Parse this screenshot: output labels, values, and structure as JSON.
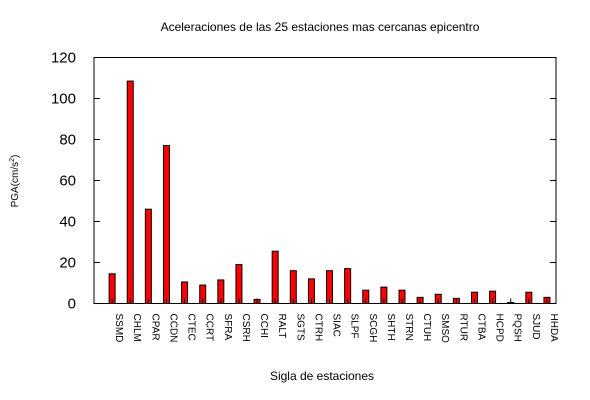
{
  "chart_data": {
    "type": "bar",
    "title": "Aceleraciones de las 25 estaciones mas cercanas epicentro",
    "xlabel": "Sigla de estaciones",
    "ylabel": "PGA(cm/s",
    "ylabel_superscript": "2",
    "ylabel_close": ")",
    "categories": [
      "SSMD",
      "CHLM",
      "CPAR",
      "CCDN",
      "CTEC",
      "CCRT",
      "SFRA",
      "CSRH",
      "CCHI",
      "RALT",
      "SGTS",
      "CTRH",
      "SIAC",
      "SLPF",
      "SCGH",
      "SHTH",
      "STRN",
      "CTUH",
      "SMSO",
      "RTUR",
      "CTBA",
      "HCPD",
      "PQSH",
      "SJUD",
      "HHDA"
    ],
    "values": [
      14.5,
      108.5,
      46,
      77,
      10.5,
      9,
      11.5,
      19,
      2,
      25.5,
      16,
      12,
      16,
      17,
      6.5,
      8,
      6.5,
      3,
      4.5,
      2.5,
      5.5,
      6,
      0.5,
      5.5,
      3
    ],
    "ylim": [
      0,
      120
    ],
    "yticks": [
      0,
      20,
      40,
      60,
      80,
      100,
      120
    ],
    "bar_color": "#ff0000",
    "bar_stroke": "#000000",
    "grid": false,
    "legend": "none"
  }
}
